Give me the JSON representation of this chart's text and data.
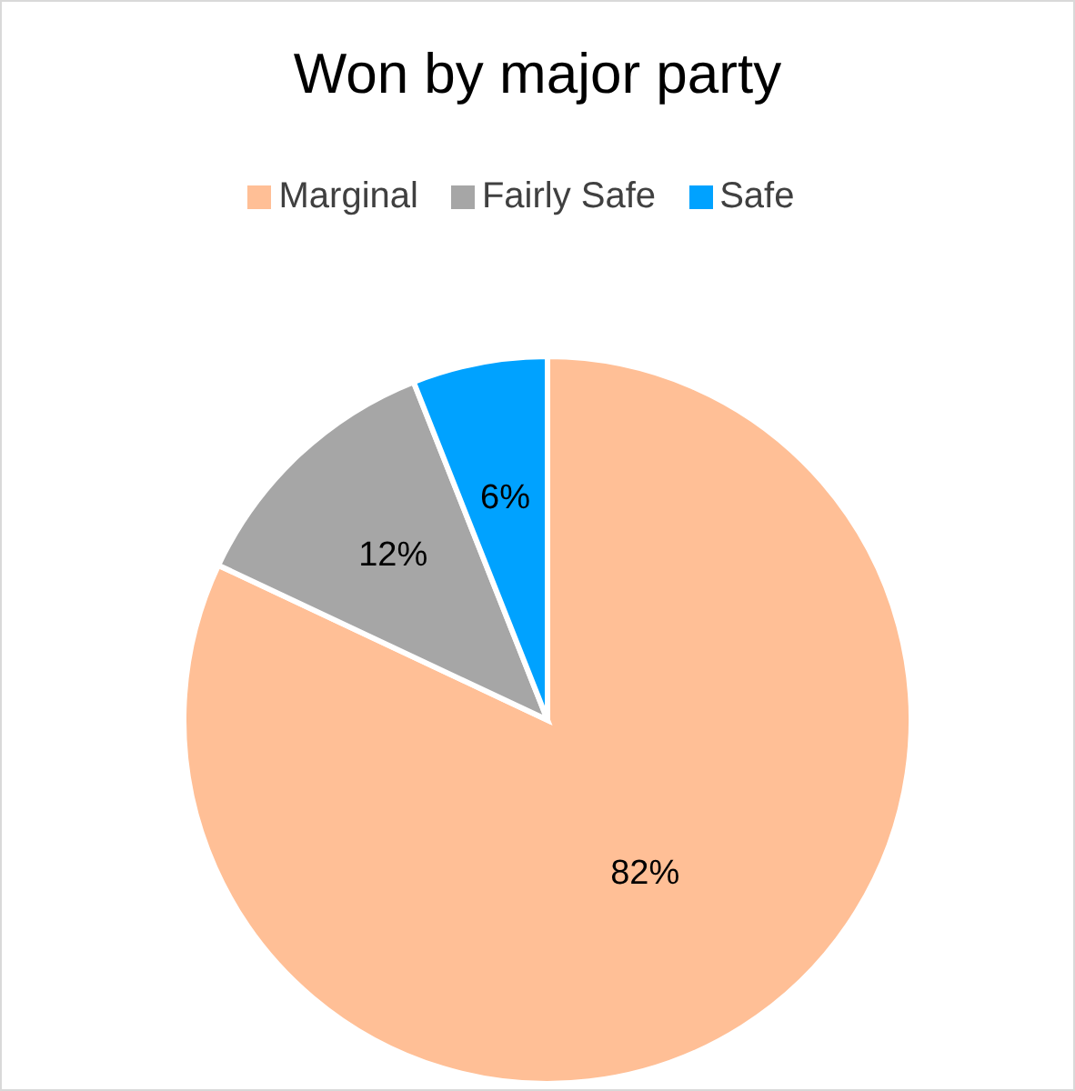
{
  "chart_data": {
    "type": "pie",
    "title": "Won by major party",
    "categories": [
      "Marginal",
      "Fairly Safe",
      "Safe"
    ],
    "values": [
      82,
      12,
      6
    ],
    "colors": [
      "#ffbf96",
      "#a6a6a6",
      "#00a2ff"
    ],
    "value_labels": [
      "82%",
      "12%",
      "6%"
    ],
    "legend": "top"
  }
}
